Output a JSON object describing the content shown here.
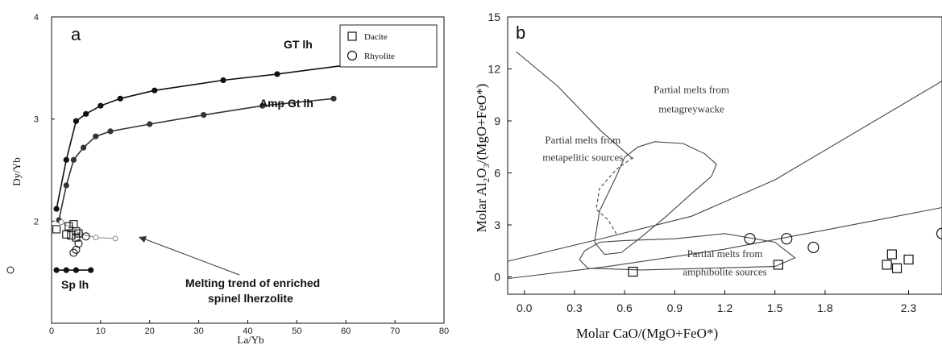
{
  "chart_data": [
    {
      "type": "line",
      "panel_label": "a",
      "xlabel": "La/Yb",
      "ylabel": "Dy/Yb",
      "xlim": [
        0,
        80
      ],
      "ylim": [
        1,
        4
      ],
      "xticks": [
        "0",
        "10",
        "20",
        "30",
        "40",
        "50",
        "60",
        "70",
        "80"
      ],
      "yticks": [
        "2",
        "3",
        "4"
      ],
      "series": [
        {
          "name": "GT lh",
          "style": "black-dots",
          "x": [
            1,
            3,
            5,
            7,
            10,
            14,
            21,
            35,
            46,
            62
          ],
          "y": [
            2.12,
            2.6,
            2.98,
            3.05,
            3.13,
            3.2,
            3.28,
            3.38,
            3.44,
            3.54
          ]
        },
        {
          "name": "Amp Gt lh",
          "style": "grey-dots",
          "x": [
            1.5,
            3,
            4.5,
            6.5,
            9,
            12,
            20,
            31,
            43,
            57.5
          ],
          "y": [
            2.01,
            2.35,
            2.6,
            2.72,
            2.83,
            2.88,
            2.95,
            3.04,
            3.13,
            3.2
          ]
        },
        {
          "name": "Sp lh",
          "style": "black-dots",
          "x": [
            1,
            3,
            5,
            8
          ],
          "y": [
            1.52,
            1.52,
            1.52,
            1.52
          ]
        },
        {
          "name": "Melting trend of enriched spinel lherzolite",
          "style": "open-small",
          "x": [
            2,
            4,
            6,
            9,
            13
          ],
          "y": [
            1.99,
            1.93,
            1.87,
            1.84,
            1.83
          ]
        }
      ],
      "dacite": {
        "x": [
          1,
          3.5,
          4.5,
          5,
          5.5,
          4,
          3,
          5
        ],
        "y": [
          1.92,
          1.95,
          1.97,
          1.9,
          1.88,
          1.86,
          1.87,
          1.84
        ]
      },
      "rhyolite": {
        "x": [
          4.5,
          5,
          5.5,
          7
        ],
        "y": [
          1.69,
          1.72,
          1.78,
          1.85
        ]
      },
      "legend": [
        "Dacite",
        "Rhyolite"
      ],
      "legend_position": "top-right",
      "annotations": [
        "GT lh",
        "Amp Gt lh",
        "Sp lh",
        "Melting trend of enriched",
        "spinel lherzolite"
      ]
    },
    {
      "type": "scatter",
      "panel_label": "b",
      "xlabel": "Molar CaO/(MgO+FeO*)",
      "ylabel_parts": [
        "Molar Al",
        "2",
        "O",
        "3",
        "/(MgO+FeO*)"
      ],
      "xlim": [
        -0.1,
        2.5
      ],
      "ylim": [
        -1,
        15
      ],
      "xticks": [
        {
          "v": 0,
          "t": "0.0"
        },
        {
          "v": 0.3,
          "t": "0.3"
        },
        {
          "v": 0.6,
          "t": "0.6"
        },
        {
          "v": 0.9,
          "t": "0.9"
        },
        {
          "v": 1.2,
          "t": "1.2"
        },
        {
          "v": 1.5,
          "t": "1.5"
        },
        {
          "v": 1.8,
          "t": "1.8"
        },
        {
          "v": 2.3,
          "t": "2.3"
        }
      ],
      "yticks": [
        {
          "v": 0,
          "t": "0"
        },
        {
          "v": 3,
          "t": "3"
        },
        {
          "v": 6,
          "t": "6"
        },
        {
          "v": 9,
          "t": "9"
        },
        {
          "v": 12,
          "t": "12"
        },
        {
          "v": 15,
          "t": "15"
        }
      ],
      "dacite": {
        "x": [
          0.65,
          1.52,
          2.17,
          2.2,
          2.23,
          2.3
        ],
        "y": [
          0.3,
          0.7,
          0.7,
          1.3,
          0.5,
          1.0
        ]
      },
      "rhyolite": {
        "x": [
          1.35,
          1.57,
          1.73,
          2.5
        ],
        "y": [
          2.2,
          2.2,
          1.7,
          2.5
        ]
      },
      "boundaries": [
        {
          "x": [
            -0.05,
            0.2,
            0.45,
            0.65
          ],
          "y": [
            13,
            11,
            8.5,
            6.8
          ]
        },
        {
          "x": [
            -0.1,
            0.5,
            1.0,
            1.5,
            2.5
          ],
          "y": [
            0.9,
            2.3,
            3.5,
            5.6,
            11.3
          ]
        },
        {
          "x": [
            -0.1,
            0.5,
            1.2,
            1.8,
            2.5
          ],
          "y": [
            -0.1,
            0.6,
            1.6,
            2.7,
            4.0
          ]
        }
      ],
      "metagreywacke_field": {
        "x": [
          0.6,
          0.68,
          0.78,
          0.95,
          1.08,
          1.15,
          1.12,
          1.0,
          0.85,
          0.7,
          0.58,
          0.48,
          0.42,
          0.45,
          0.55,
          0.6
        ],
        "y": [
          6.9,
          7.5,
          7.8,
          7.7,
          7.1,
          6.5,
          5.8,
          4.8,
          3.5,
          2.3,
          1.4,
          1.3,
          2.0,
          3.8,
          5.8,
          6.9
        ]
      },
      "amphibolite_field": {
        "x": [
          0.45,
          0.6,
          0.9,
          1.2,
          1.5,
          1.62,
          1.5,
          1.1,
          0.7,
          0.38,
          0.33,
          0.36,
          0.45
        ],
        "y": [
          2.0,
          2.1,
          2.2,
          2.5,
          2.0,
          1.1,
          0.6,
          0.5,
          0.4,
          0.5,
          1.0,
          1.5,
          2.0
        ]
      },
      "metapelitic_boundary": {
        "x": [
          0.65,
          0.55,
          0.45,
          0.43,
          0.5,
          0.55
        ],
        "y": [
          6.9,
          6.2,
          5.1,
          3.9,
          3.3,
          2.5
        ]
      },
      "field_labels": [
        {
          "text": "Partial melts from",
          "x": 1.0,
          "y": 10.6
        },
        {
          "text": "metagreywacke",
          "x": 1.0,
          "y": 9.5
        },
        {
          "text": "Partial melts from",
          "x": 0.35,
          "y": 7.7
        },
        {
          "text": "metapelitic sources",
          "x": 0.35,
          "y": 6.7
        },
        {
          "text": "Partial melts from",
          "x": 1.2,
          "y": 1.15
        },
        {
          "text": "amphibolite sources",
          "x": 1.2,
          "y": 0.1
        }
      ]
    }
  ]
}
